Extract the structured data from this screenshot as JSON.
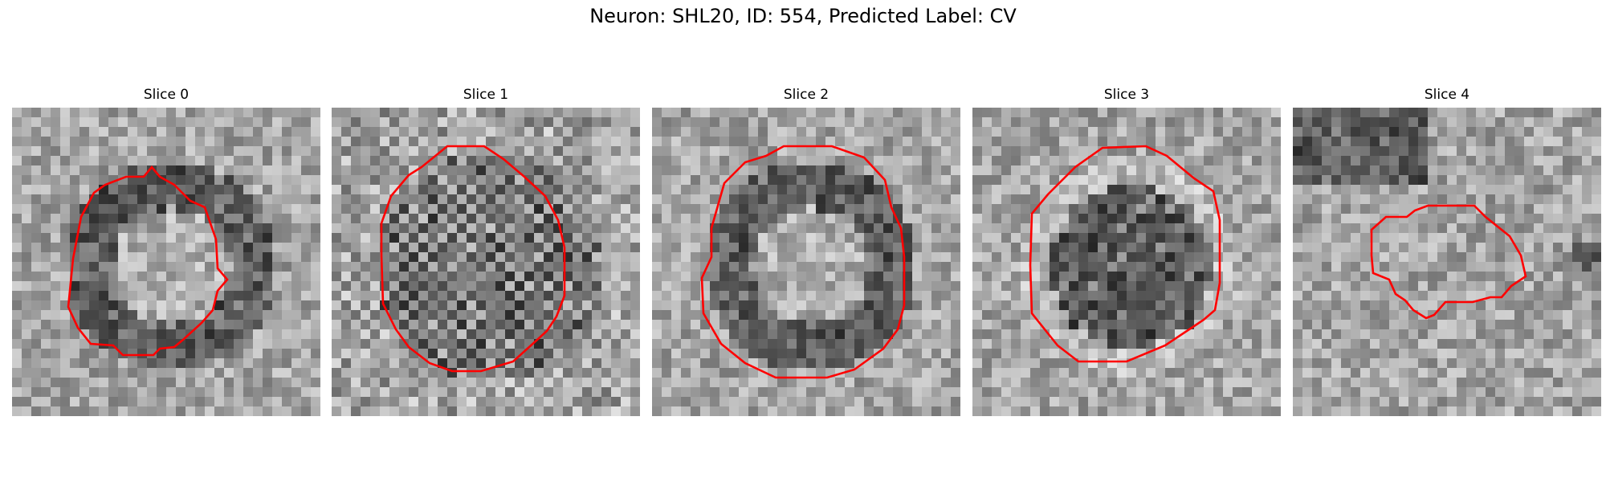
{
  "figure": {
    "title": "Neuron: SHL20, ID: 554, Predicted Label: CV"
  },
  "panels": [
    {
      "title": "Slice 0",
      "seed": 11,
      "ring": "dark-ring-bright-core"
    },
    {
      "title": "Slice 1",
      "seed": 23,
      "ring": "checker-dark"
    },
    {
      "title": "Slice 2",
      "seed": 37,
      "ring": "dark-ring-bright-core"
    },
    {
      "title": "Slice 3",
      "seed": 53,
      "ring": "dark-striped-core"
    },
    {
      "title": "Slice 4",
      "seed": 71,
      "ring": "faint"
    }
  ],
  "colors": {
    "contour": "#ff0000"
  }
}
